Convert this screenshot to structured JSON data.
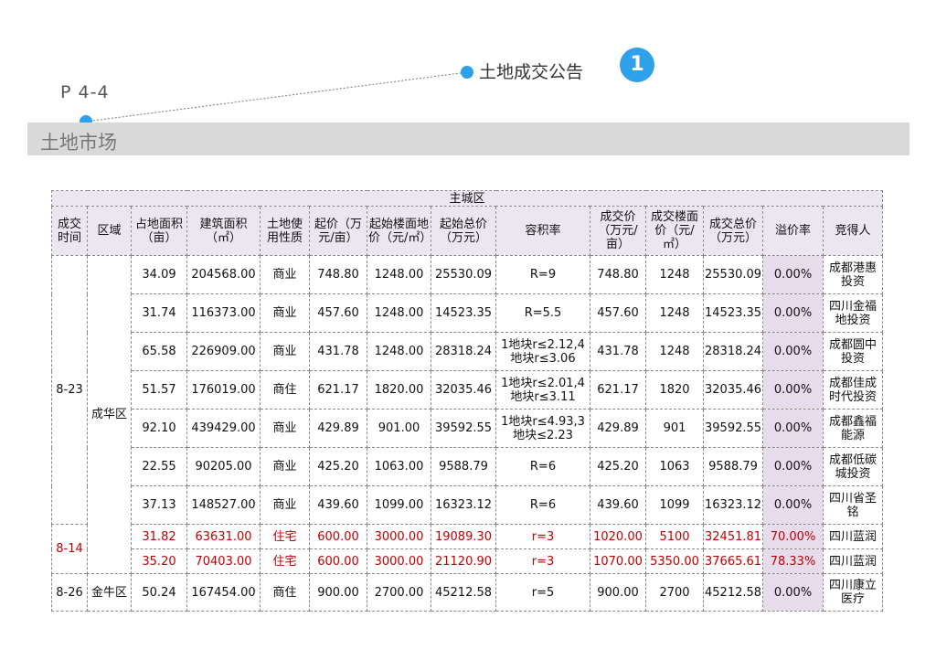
{
  "page_code": "P 4-4",
  "callout": {
    "label": "土地成交公告",
    "badge": "1"
  },
  "section_title": "土地市场",
  "colors": {
    "accent": "#2fa0ea",
    "header_bg": "#ece6f0",
    "premium_bg": "#e6dcec",
    "highlight_text": "#c00000",
    "bar_bg": "#d9d9d9"
  },
  "table": {
    "banner": "主城区",
    "headers": [
      "成交时间",
      "区域",
      "占地面积（亩）",
      "建筑面积（㎡）",
      "土地使用性质",
      "起价（万元/亩）",
      "起始楼面地价（元/㎡）",
      "起始总价（万元）",
      "容积率",
      "成交价（万元/亩）",
      "成交楼面价（元/㎡）",
      "成交总价（万元）",
      "溢价率",
      "竞得人"
    ],
    "dates": [
      "8-23",
      "8-14",
      "8-26"
    ],
    "districts": [
      "成华区",
      "金牛区"
    ],
    "rows": [
      {
        "area": "34.09",
        "floor": "204568.00",
        "use": "商业",
        "start_price": "748.80",
        "start_floor": "1248.00",
        "start_total": "25530.09",
        "far": "R=9",
        "deal_price": "748.80",
        "deal_floor": "1248",
        "deal_total": "25530.09",
        "premium": "0.00%",
        "winner": "成都港惠投资"
      },
      {
        "area": "31.74",
        "floor": "116373.00",
        "use": "商业",
        "start_price": "457.60",
        "start_floor": "1248.00",
        "start_total": "14523.35",
        "far": "R=5.5",
        "deal_price": "457.60",
        "deal_floor": "1248",
        "deal_total": "14523.35",
        "premium": "0.00%",
        "winner": "四川金福地投资"
      },
      {
        "area": "65.58",
        "floor": "226909.00",
        "use": "商业",
        "start_price": "431.78",
        "start_floor": "1248.00",
        "start_total": "28318.24",
        "far": "1地块r≤2.12,4地块r≤3.06",
        "deal_price": "431.78",
        "deal_floor": "1248",
        "deal_total": "28318.24",
        "premium": "0.00%",
        "winner": "成都圆中投资"
      },
      {
        "area": "51.57",
        "floor": "176019.00",
        "use": "商住",
        "start_price": "621.17",
        "start_floor": "1820.00",
        "start_total": "32035.46",
        "far": "1地块r≤2.01,4地块r≤3.11",
        "deal_price": "621.17",
        "deal_floor": "1820",
        "deal_total": "32035.46",
        "premium": "0.00%",
        "winner": "成都佳成时代投资"
      },
      {
        "area": "92.10",
        "floor": "439429.00",
        "use": "商业",
        "start_price": "429.89",
        "start_floor": "901.00",
        "start_total": "39592.55",
        "far": "1地块r≤4.93,3地块≤2.23",
        "deal_price": "429.89",
        "deal_floor": "901",
        "deal_total": "39592.55",
        "premium": "0.00%",
        "winner": "成都鑫福能源"
      },
      {
        "area": "22.55",
        "floor": "90205.00",
        "use": "商业",
        "start_price": "425.20",
        "start_floor": "1063.00",
        "start_total": "9588.79",
        "far": "R=6",
        "deal_price": "425.20",
        "deal_floor": "1063",
        "deal_total": "9588.79",
        "premium": "0.00%",
        "winner": "成都低碳城投资"
      },
      {
        "area": "37.13",
        "floor": "148527.00",
        "use": "商业",
        "start_price": "439.60",
        "start_floor": "1099.00",
        "start_total": "16323.12",
        "far": "R=6",
        "deal_price": "439.60",
        "deal_floor": "1099",
        "deal_total": "16323.12",
        "premium": "0.00%",
        "winner": "四川省圣铭"
      },
      {
        "area": "31.82",
        "floor": "63631.00",
        "use": "住宅",
        "start_price": "600.00",
        "start_floor": "3000.00",
        "start_total": "19089.30",
        "far": "r=3",
        "deal_price": "1020.00",
        "deal_floor": "5100",
        "deal_total": "32451.81",
        "premium": "70.00%",
        "winner": "四川蓝润"
      },
      {
        "area": "35.20",
        "floor": "70403.00",
        "use": "住宅",
        "start_price": "600.00",
        "start_floor": "3000.00",
        "start_total": "21120.90",
        "far": "r=3",
        "deal_price": "1070.00",
        "deal_floor": "5350.00",
        "deal_total": "37665.61",
        "premium": "78.33%",
        "winner": "四川蓝润"
      },
      {
        "area": "50.24",
        "floor": "167454.00",
        "use": "商住",
        "start_price": "900.00",
        "start_floor": "2700.00",
        "start_total": "45212.58",
        "far": "r=5",
        "deal_price": "900.00",
        "deal_floor": "2700",
        "deal_total": "45212.58",
        "premium": "0.00%",
        "winner": "四川康立医疗"
      }
    ]
  }
}
